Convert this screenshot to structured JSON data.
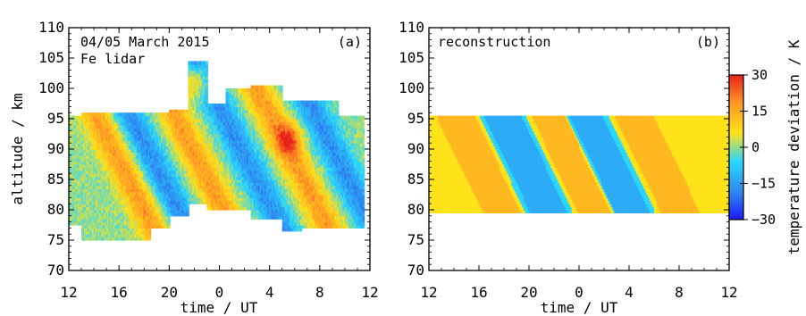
{
  "figure": {
    "x_tick_labels": [
      "12",
      "16",
      "20",
      "0",
      "4",
      "8",
      "12"
    ],
    "y_tick_labels": [
      "70",
      "75",
      "80",
      "85",
      "90",
      "95",
      "100",
      "105",
      "110"
    ]
  },
  "colorbar": {
    "label": "temperature deviation / K",
    "tick_labels": [
      "30",
      "15",
      "0",
      "−15",
      "−30"
    ],
    "range": [
      -30,
      30
    ],
    "colors": [
      "#1a1aff",
      "#2f8cf0",
      "#29d6ff",
      "#ffe21a",
      "#ff9a24",
      "#e8231a"
    ]
  },
  "chart_data": [
    {
      "type": "heatmap",
      "panel_label": "(a)",
      "annotation_lines": [
        "04/05 March 2015",
        "Fe lidar"
      ],
      "xlabel": "time / UT",
      "ylabel": "altitude / km",
      "x_tick_labels": [
        "12",
        "16",
        "20",
        "0",
        "4",
        "8",
        "12"
      ],
      "y_tick_labels": [
        "70",
        "75",
        "80",
        "85",
        "90",
        "95",
        "100",
        "105",
        "110"
      ],
      "xlim_hours_from_12UT": [
        0,
        24
      ],
      "ylim_km": [
        70,
        110
      ],
      "value_units": "K",
      "value_range": [
        -30,
        30
      ],
      "coverage_km": [
        {
          "t": [
            0.0,
            1.0
          ],
          "alt": [
            77.5,
            95.5
          ]
        },
        {
          "t": [
            1.0,
            6.5
          ],
          "alt": [
            75.0,
            96.0
          ]
        },
        {
          "t": [
            6.5,
            8.0
          ],
          "alt": [
            77.0,
            96.0
          ]
        },
        {
          "t": [
            8.0,
            9.5
          ],
          "alt": [
            79.0,
            96.5
          ]
        },
        {
          "t": [
            9.5,
            11.0
          ],
          "alt": [
            81.0,
            104.5
          ]
        },
        {
          "t": [
            11.0,
            12.5
          ],
          "alt": [
            80.0,
            97.5
          ]
        },
        {
          "t": [
            12.5,
            14.5
          ],
          "alt": [
            80.0,
            100.0
          ]
        },
        {
          "t": [
            14.5,
            17.0
          ],
          "alt": [
            78.5,
            100.5
          ]
        },
        {
          "t": [
            17.0,
            18.5
          ],
          "alt": [
            76.5,
            98.0
          ]
        },
        {
          "t": [
            18.5,
            21.5
          ],
          "alt": [
            77.0,
            98.0
          ]
        },
        {
          "t": [
            21.5,
            23.5
          ],
          "alt": [
            77.0,
            95.5
          ]
        }
      ],
      "phase_fronts": [
        {
          "sign": "positive",
          "t_at_95km": 2.3,
          "t_at_75km": 7.3
        },
        {
          "sign": "negative",
          "t_at_95km": 5.0,
          "t_at_75km": 10.0
        },
        {
          "sign": "positive",
          "t_at_95km": 8.6,
          "t_at_75km": 13.6
        },
        {
          "sign": "negative",
          "t_at_95km": 12.5,
          "t_at_75km": 17.5
        },
        {
          "sign": "positive",
          "t_at_95km": 16.2,
          "t_at_75km": 21.2
        },
        {
          "sign": "negative",
          "t_at_95km": 19.8,
          "t_at_75km": 24.8
        }
      ],
      "peak_values": [
        {
          "t": 10.3,
          "alt": 101,
          "value": 25
        },
        {
          "t": 17.5,
          "alt": 91.5,
          "value": 25
        }
      ]
    },
    {
      "type": "heatmap",
      "panel_label": "(b)",
      "annotation_lines": [
        "reconstruction"
      ],
      "xlabel": "time / UT",
      "ylabel": "",
      "x_tick_labels": [
        "12",
        "16",
        "20",
        "0",
        "4",
        "8",
        "12"
      ],
      "y_tick_labels": [
        "70",
        "75",
        "80",
        "85",
        "90",
        "95",
        "100",
        "105",
        "110"
      ],
      "xlim_hours_from_12UT": [
        0,
        24
      ],
      "ylim_km": [
        70,
        110
      ],
      "value_units": "K",
      "value_range": [
        -30,
        30
      ],
      "coverage_km": [
        {
          "t": [
            0.0,
            24.0
          ],
          "alt": [
            79.5,
            95.5
          ]
        }
      ],
      "phase_fronts": [
        {
          "sign": "positive",
          "t_at_95km": 2.3,
          "t_at_80km": 5.8
        },
        {
          "sign": "negative",
          "t_at_95km": 6.0,
          "t_at_80km": 9.5
        },
        {
          "sign": "positive",
          "t_at_95km": 9.8,
          "t_at_80km": 13.3
        },
        {
          "sign": "negative",
          "t_at_95km": 12.5,
          "t_at_80km": 16.0
        },
        {
          "sign": "positive",
          "t_at_95km": 16.5,
          "t_at_80km": 20.0
        }
      ]
    }
  ]
}
